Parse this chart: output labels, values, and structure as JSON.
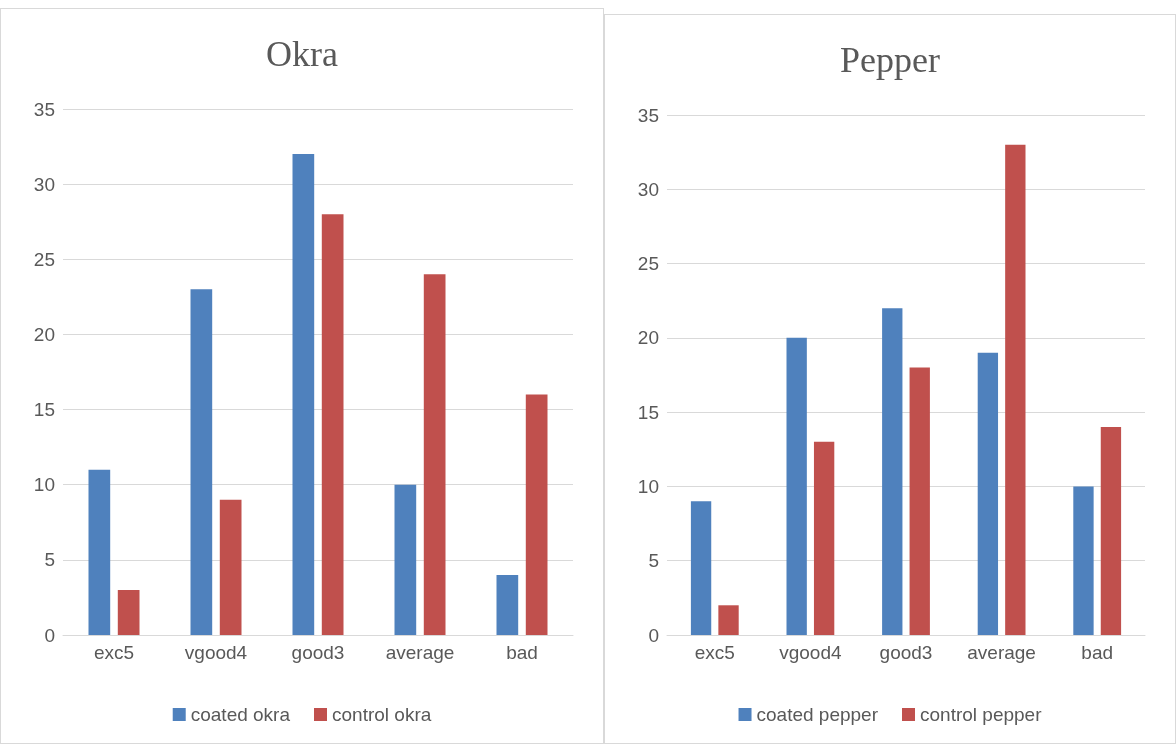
{
  "chart_data": [
    {
      "type": "bar",
      "title": "Okra",
      "categories": [
        "exc5",
        "vgood4",
        "good3",
        "average",
        "bad"
      ],
      "series": [
        {
          "name": "coated okra",
          "color": "#4f81bd",
          "values": [
            11,
            23,
            32,
            10,
            4
          ]
        },
        {
          "name": "control okra",
          "color": "#c0504d",
          "values": [
            3,
            9,
            28,
            24,
            16
          ]
        }
      ],
      "ylim": [
        0,
        35
      ],
      "yticks": [
        0,
        5,
        10,
        15,
        20,
        25,
        30,
        35
      ],
      "grid": "y",
      "legend": "bottom"
    },
    {
      "type": "bar",
      "title": "Pepper",
      "categories": [
        "exc5",
        "vgood4",
        "good3",
        "average",
        "bad"
      ],
      "series": [
        {
          "name": "coated pepper",
          "color": "#4f81bd",
          "values": [
            9,
            20,
            22,
            19,
            10
          ]
        },
        {
          "name": "control pepper",
          "color": "#c0504d",
          "values": [
            2,
            13,
            18,
            33,
            14
          ]
        }
      ],
      "ylim": [
        0,
        35
      ],
      "yticks": [
        0,
        5,
        10,
        15,
        20,
        25,
        30,
        35
      ],
      "grid": "y",
      "legend": "bottom"
    }
  ]
}
